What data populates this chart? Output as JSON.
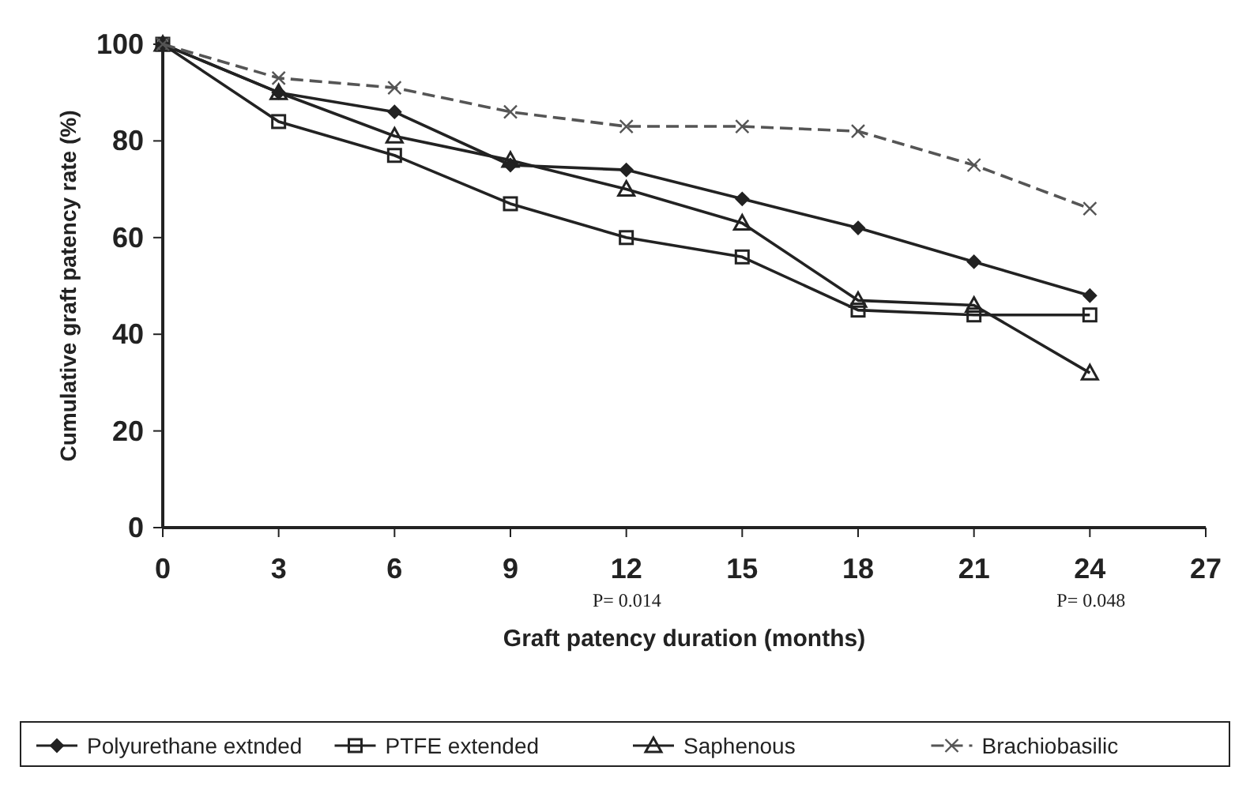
{
  "chart_data": {
    "type": "line",
    "xlabel": "Graft patency duration (months)",
    "ylabel": "Cumulative graft patency rate (%)",
    "x": [
      0,
      3,
      6,
      9,
      12,
      15,
      18,
      21,
      24
    ],
    "series": [
      {
        "name": "Polyurethane extnded",
        "color": "#222222",
        "marker": "diamond",
        "line_style": "solid",
        "values": [
          100,
          90,
          86,
          75,
          74,
          68,
          62,
          55,
          48
        ]
      },
      {
        "name": "PTFE extended",
        "color": "#222222",
        "marker": "square",
        "line_style": "solid",
        "values": [
          100,
          84,
          77,
          67,
          60,
          56,
          45,
          44,
          44
        ]
      },
      {
        "name": "Saphenous",
        "color": "#222222",
        "marker": "triangle",
        "line_style": "solid",
        "values": [
          100,
          90,
          81,
          76,
          70,
          63,
          47,
          46,
          32
        ]
      },
      {
        "name": "Brachiobasilic",
        "color": "#555555",
        "marker": "cross",
        "line_style": "dashed",
        "values": [
          100,
          93,
          91,
          86,
          83,
          83,
          82,
          75,
          66
        ]
      }
    ],
    "xlim": [
      0,
      27
    ],
    "xticks": [
      0,
      3,
      6,
      9,
      12,
      15,
      18,
      21,
      24,
      27
    ],
    "ylim": [
      0,
      100
    ],
    "yticks": [
      0,
      20,
      40,
      60,
      80,
      100
    ],
    "annotations": [
      "P= 0.014",
      "P= 0.048"
    ],
    "legend": "bottom",
    "grid": false
  }
}
